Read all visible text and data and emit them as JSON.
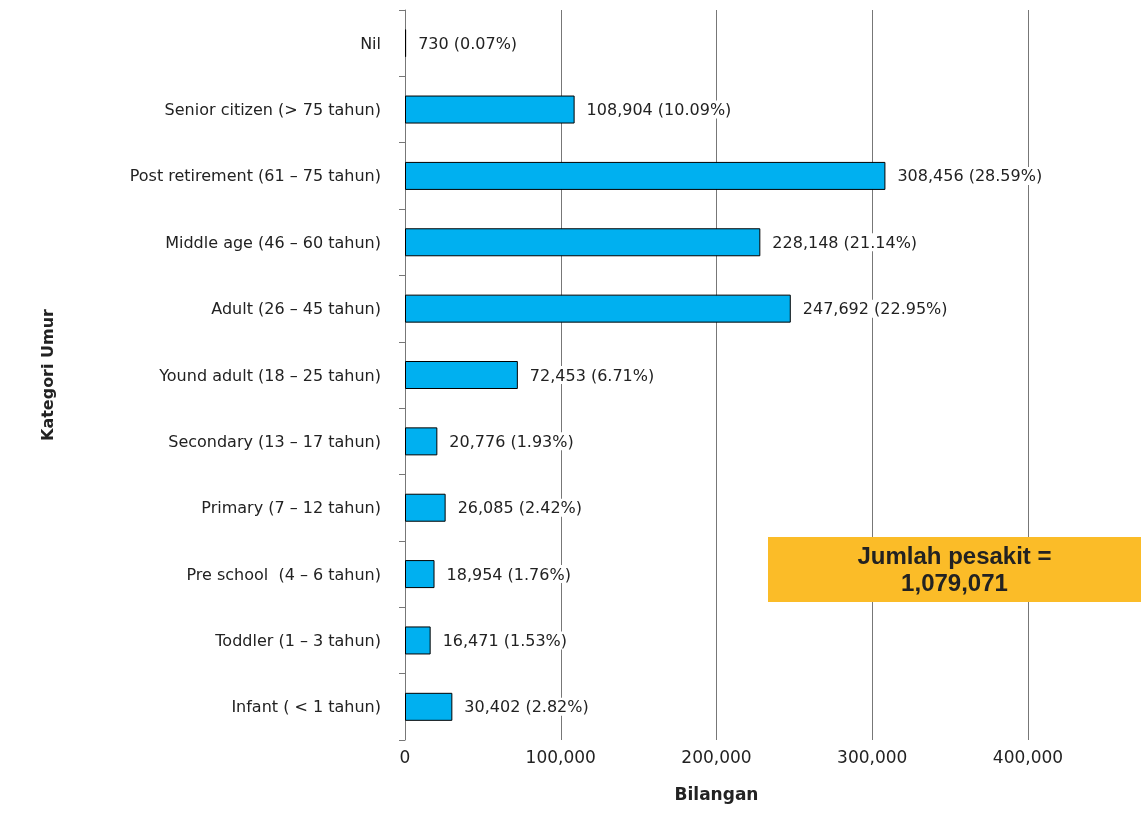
{
  "chart_data": {
    "type": "bar",
    "orientation": "horizontal",
    "xlabel": "Bilangan",
    "ylabel": "Kategori Umur",
    "categories": [
      "Nil",
      "Senior citizen (> 75 tahun)",
      "Post retirement (61 – 75 tahun)",
      "Middle age (46 – 60 tahun)",
      "Adult (26 – 45 tahun)",
      "Yound adult (18 – 25 tahun)",
      "Secondary (13 – 17 tahun)",
      "Primary (7 – 12 tahun)",
      "Pre school  (4 – 6 tahun)",
      "Toddler (1 – 3 tahun)",
      "Infant ( < 1 tahun)"
    ],
    "values": [
      730,
      108904,
      308456,
      228148,
      247692,
      72453,
      20776,
      26085,
      18954,
      16471,
      30402
    ],
    "value_labels": [
      "730 (0.07%)",
      "108,904 (10.09%)",
      "308,456 (28.59%)",
      "228,148 (21.14%)",
      "247,692 (22.95%)",
      "72,453 (6.71%)",
      "20,776 (1.93%)",
      "26,085 (2.42%)",
      "18,954 (1.76%)",
      "16,471 (1.53%)",
      "30,402 (2.82%)"
    ],
    "color": "#00b0f0",
    "xlim": [
      0,
      400000
    ],
    "xticks": [
      0,
      {
        "value": 100000,
        "label": "100,000"
      },
      {
        "value": 200000,
        "label": "200,000"
      },
      {
        "value": 300000,
        "label": "300,000"
      },
      {
        "value": 400000,
        "label": "400,000"
      }
    ],
    "grid": "x",
    "annotations": [
      "Jumlah pesakit = 1,079,071"
    ]
  }
}
